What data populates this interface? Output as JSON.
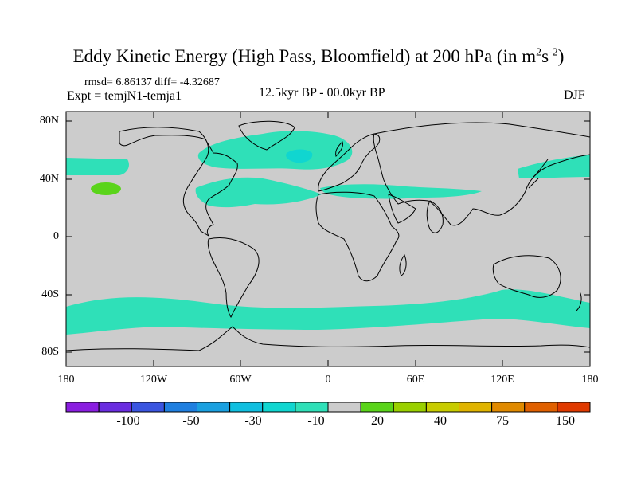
{
  "title": "Eddy Kinetic Energy (High Pass, Bloomfield) at 200 hPa (in m",
  "title_unit_sup1": "2",
  "title_unit_mid": "s",
  "title_unit_sup2": "-2",
  "title_close": ")",
  "stats": "rmsd= 6.86137 diff= -4.32687",
  "experiment": "Expt = temjN1-temja1",
  "period": "12.5kyr BP - 00.0kyr BP",
  "season": "DJF",
  "lat_labels": [
    "80N",
    "40N",
    "0",
    "40S",
    "80S"
  ],
  "lon_labels": [
    "180",
    "120W",
    "60W",
    "0",
    "60E",
    "120E",
    "180"
  ],
  "colorbar": {
    "labels": [
      "-100",
      "-50",
      "-30",
      "-10",
      "20",
      "40",
      "75",
      "150"
    ],
    "colors": [
      "#8a1ee0",
      "#6a2de0",
      "#3a55e0",
      "#1f7fe0",
      "#1aa0e0",
      "#10bfe0",
      "#10d6d0",
      "#2fe0b8",
      "#cccccc",
      "#5ad41a",
      "#9ad000",
      "#c8cc00",
      "#e0b400",
      "#e08a00",
      "#e06000",
      "#e03a00"
    ]
  },
  "colors": {
    "land_ocean": "#cccccc",
    "negative_small": "#2fe0b8",
    "negative_mid": "#10d6d0",
    "positive_small": "#5ad41a"
  }
}
